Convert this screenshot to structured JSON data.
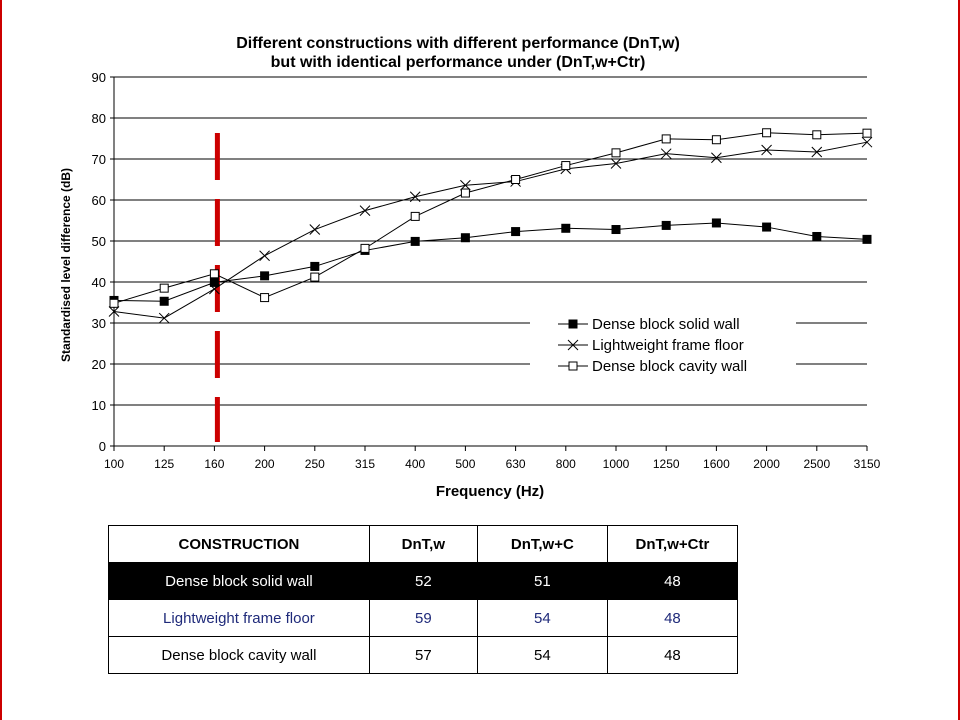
{
  "chart_data": {
    "type": "line",
    "title": "Different constructions with different performance (DnT,w)",
    "subtitle": "but with identical performance under (DnT,w+Ctr)",
    "xlabel": "Frequency (Hz)",
    "ylabel": "Standardised level difference (dB)",
    "ylim": [
      0,
      90
    ],
    "yticks": [
      "0",
      "10",
      "20",
      "30",
      "40",
      "50",
      "60",
      "70",
      "80",
      "90"
    ],
    "categories": [
      "100",
      "125",
      "160",
      "200",
      "250",
      "315",
      "400",
      "500",
      "630",
      "800",
      "1000",
      "1250",
      "1600",
      "2000",
      "2500",
      "3150"
    ],
    "grid": "horizontal",
    "legend_position": "lower-right",
    "marker_line_category": "160",
    "series": [
      {
        "name": "Dense block solid wall",
        "marker": "filled-square",
        "values": [
          35.5,
          35.3,
          39.9,
          41.5,
          43.8,
          47.7,
          49.9,
          50.8,
          52.3,
          53.1,
          52.8,
          53.8,
          54.4,
          53.4,
          51.1,
          50.4
        ]
      },
      {
        "name": "Lightweight frame floor",
        "marker": "x",
        "values": [
          32.8,
          31.2,
          38.3,
          46.4,
          52.8,
          57.4,
          60.8,
          63.6,
          64.5,
          67.6,
          68.9,
          71.3,
          70.3,
          72.2,
          71.7,
          74.1
        ]
      },
      {
        "name": "Dense block cavity wall",
        "marker": "open-square",
        "values": [
          34.8,
          38.5,
          42.0,
          36.2,
          41.2,
          48.2,
          56.0,
          61.7,
          65.0,
          68.4,
          71.5,
          74.9,
          74.7,
          76.4,
          75.9,
          76.3
        ]
      }
    ]
  },
  "colors": {
    "accent_red": "#cc0000",
    "table_dark_row_bg": "#000000",
    "table_dark_row_fg": "#ffffff",
    "table_blue_text": "#1f2a7a"
  },
  "table": {
    "headers": [
      "CONSTRUCTION",
      "DnT,w",
      "DnT,w+C",
      "DnT,w+Ctr"
    ],
    "rows": [
      [
        "Dense block solid wall",
        "52",
        "51",
        "48"
      ],
      [
        "Lightweight frame floor",
        "59",
        "54",
        "48"
      ],
      [
        "Dense block cavity wall",
        "57",
        "54",
        "48"
      ]
    ]
  }
}
